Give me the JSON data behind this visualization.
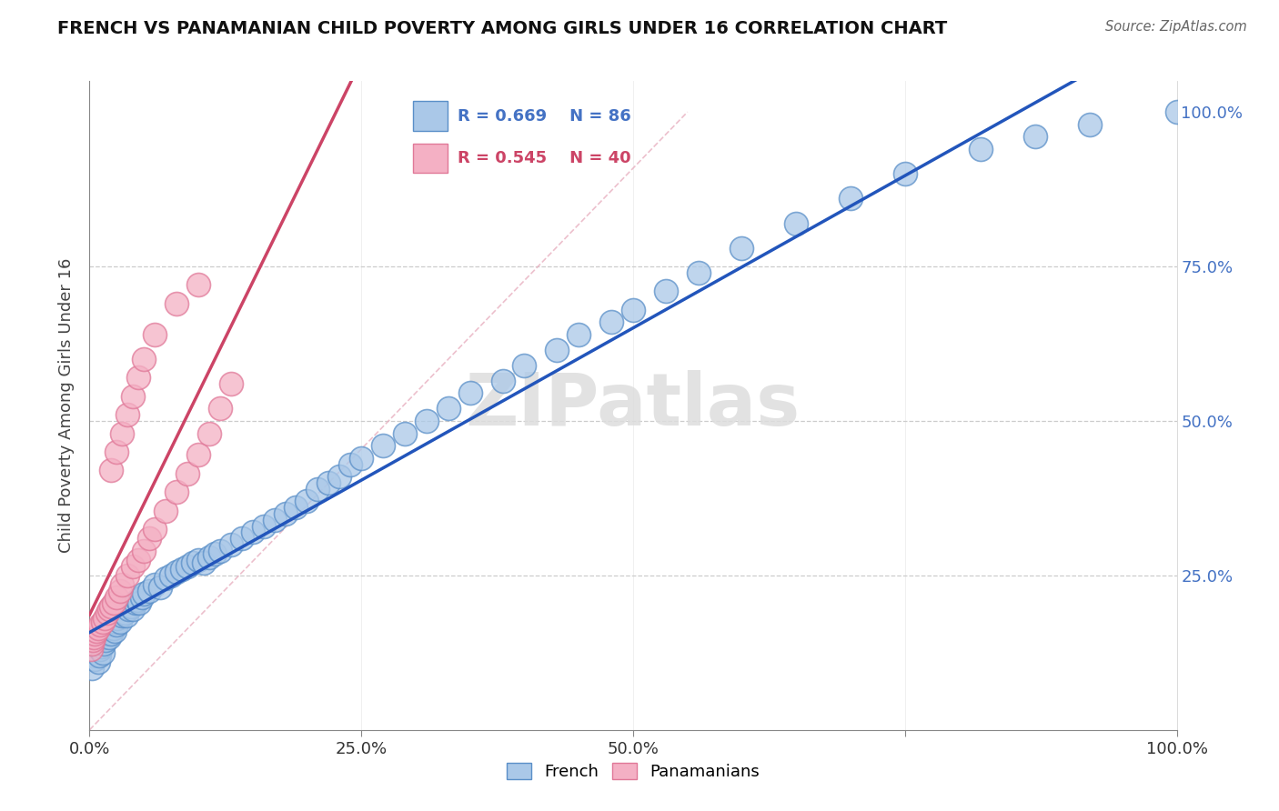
{
  "title": "FRENCH VS PANAMANIAN CHILD POVERTY AMONG GIRLS UNDER 16 CORRELATION CHART",
  "source": "Source: ZipAtlas.com",
  "ylabel": "Child Poverty Among Girls Under 16",
  "watermark": "ZIPatlas",
  "french_R": 0.669,
  "french_N": 86,
  "pan_R": 0.545,
  "pan_N": 40,
  "french_color": "#aac8e8",
  "french_edge": "#5a8fc8",
  "pan_color": "#f4b0c4",
  "pan_edge": "#e07898",
  "french_line_color": "#2255bb",
  "pan_line_color": "#cc4466",
  "ref_line_color": "#e8b0c0",
  "legend_blue_color": "#4472c4",
  "legend_pink_color": "#cc4466",
  "ytick_color": "#4472c4",
  "french_pts_x": [
    0.002,
    0.003,
    0.004,
    0.005,
    0.006,
    0.007,
    0.008,
    0.009,
    0.01,
    0.01,
    0.011,
    0.012,
    0.013,
    0.014,
    0.015,
    0.016,
    0.017,
    0.018,
    0.019,
    0.02,
    0.021,
    0.022,
    0.023,
    0.024,
    0.025,
    0.026,
    0.028,
    0.03,
    0.032,
    0.034,
    0.036,
    0.038,
    0.04,
    0.042,
    0.044,
    0.046,
    0.048,
    0.05,
    0.055,
    0.06,
    0.065,
    0.07,
    0.075,
    0.08,
    0.085,
    0.09,
    0.095,
    0.1,
    0.105,
    0.11,
    0.115,
    0.12,
    0.13,
    0.14,
    0.15,
    0.16,
    0.17,
    0.18,
    0.19,
    0.2,
    0.21,
    0.22,
    0.23,
    0.24,
    0.25,
    0.27,
    0.29,
    0.31,
    0.33,
    0.35,
    0.38,
    0.4,
    0.43,
    0.45,
    0.48,
    0.5,
    0.53,
    0.56,
    0.6,
    0.65,
    0.7,
    0.75,
    0.82,
    0.87,
    0.92,
    1.0
  ],
  "french_pts_y": [
    0.1,
    0.12,
    0.13,
    0.115,
    0.125,
    0.14,
    0.11,
    0.12,
    0.13,
    0.145,
    0.135,
    0.125,
    0.14,
    0.15,
    0.145,
    0.155,
    0.16,
    0.15,
    0.165,
    0.155,
    0.17,
    0.165,
    0.16,
    0.175,
    0.17,
    0.18,
    0.175,
    0.185,
    0.19,
    0.185,
    0.195,
    0.2,
    0.195,
    0.205,
    0.21,
    0.205,
    0.215,
    0.22,
    0.225,
    0.235,
    0.23,
    0.245,
    0.25,
    0.255,
    0.26,
    0.265,
    0.27,
    0.275,
    0.27,
    0.28,
    0.285,
    0.29,
    0.3,
    0.31,
    0.32,
    0.33,
    0.34,
    0.35,
    0.36,
    0.37,
    0.39,
    0.4,
    0.41,
    0.43,
    0.44,
    0.46,
    0.48,
    0.5,
    0.52,
    0.545,
    0.565,
    0.59,
    0.615,
    0.64,
    0.66,
    0.68,
    0.71,
    0.74,
    0.78,
    0.82,
    0.86,
    0.9,
    0.94,
    0.96,
    0.98,
    1.0
  ],
  "pan_pts_x": [
    0.001,
    0.002,
    0.003,
    0.004,
    0.005,
    0.006,
    0.008,
    0.01,
    0.012,
    0.014,
    0.016,
    0.018,
    0.02,
    0.022,
    0.025,
    0.028,
    0.03,
    0.035,
    0.04,
    0.045,
    0.05,
    0.055,
    0.06,
    0.07,
    0.08,
    0.09,
    0.1,
    0.11,
    0.12,
    0.13,
    0.02,
    0.025,
    0.03,
    0.035,
    0.04,
    0.045,
    0.05,
    0.06,
    0.08,
    0.1
  ],
  "pan_pts_y": [
    0.13,
    0.14,
    0.145,
    0.15,
    0.155,
    0.16,
    0.165,
    0.17,
    0.175,
    0.18,
    0.19,
    0.195,
    0.2,
    0.205,
    0.215,
    0.225,
    0.235,
    0.25,
    0.265,
    0.275,
    0.29,
    0.31,
    0.325,
    0.355,
    0.385,
    0.415,
    0.445,
    0.48,
    0.52,
    0.56,
    0.42,
    0.45,
    0.48,
    0.51,
    0.54,
    0.57,
    0.6,
    0.64,
    0.69,
    0.72
  ],
  "xlim": [
    0.0,
    1.0
  ],
  "ylim": [
    0.0,
    1.05
  ],
  "xticks": [
    0.0,
    0.25,
    0.5,
    0.75,
    1.0
  ],
  "xtick_labels": [
    "0.0%",
    "25.0%",
    "50.0%",
    "",
    "100.0%"
  ],
  "yticks": [
    0.25,
    0.5,
    0.75,
    1.0
  ],
  "ytick_labels": [
    "25.0%",
    "50.0%",
    "75.0%",
    "100.0%"
  ]
}
